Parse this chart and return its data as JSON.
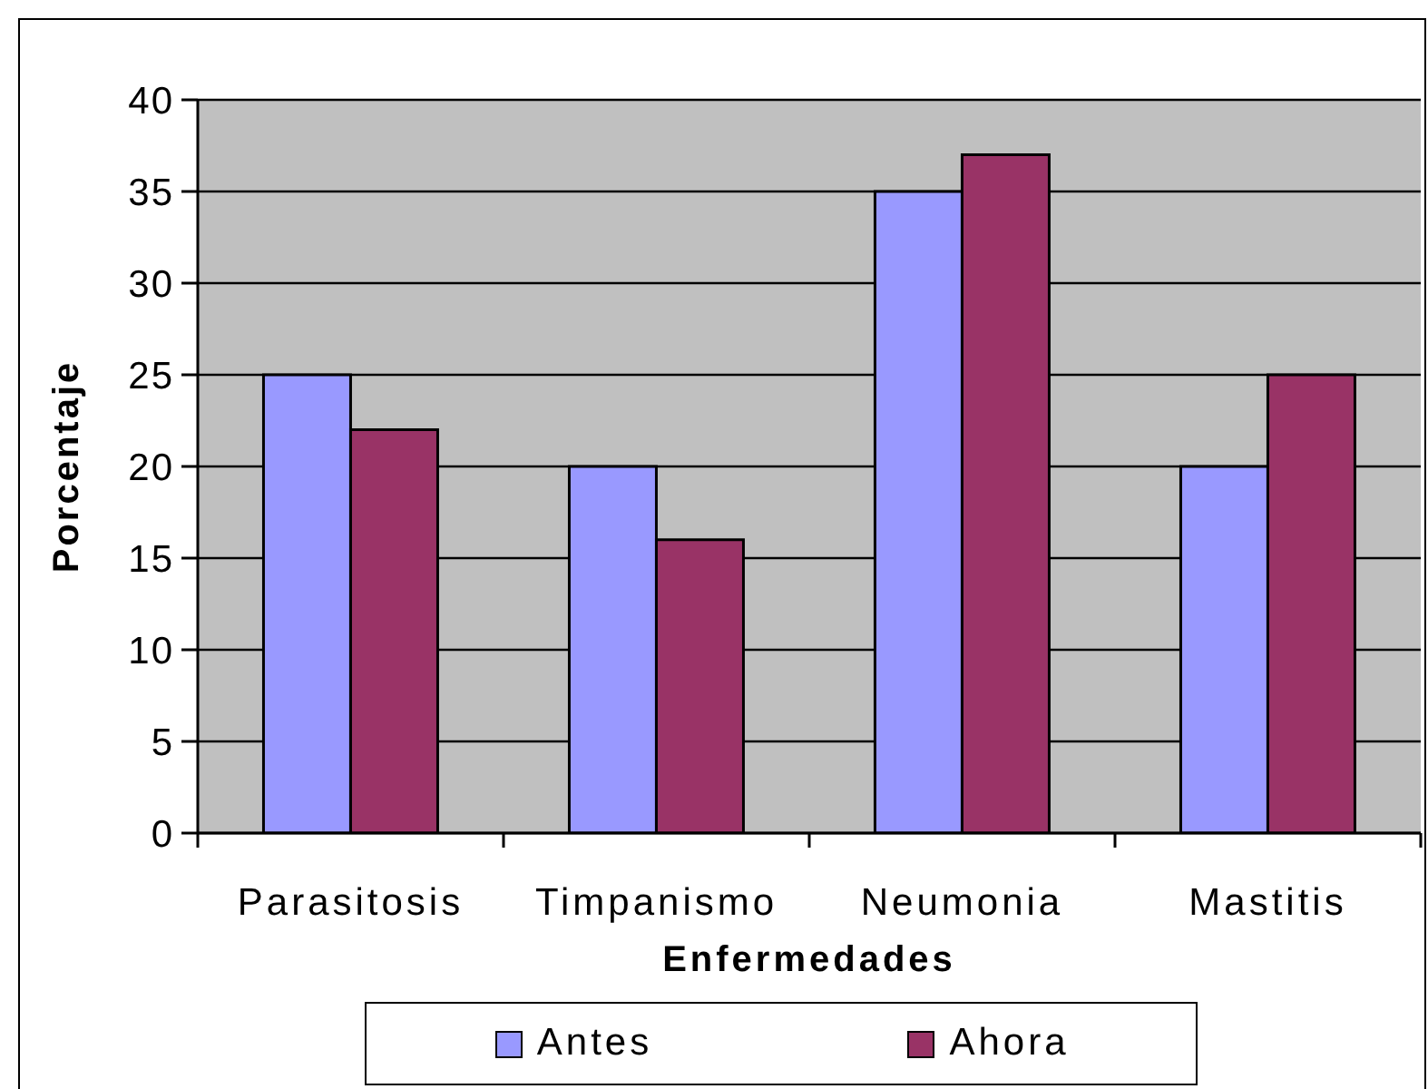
{
  "chart_data": {
    "type": "bar",
    "xlabel": "Enfermedades",
    "ylabel": "Porcentaje",
    "categories": [
      "Parasitosis",
      "Timpanismo",
      "Neumonia",
      "Mastitis"
    ],
    "series": [
      {
        "name": "Antes",
        "color": "#9999ff",
        "values": [
          25,
          20,
          35,
          20
        ]
      },
      {
        "name": "Ahora",
        "color": "#993366",
        "values": [
          22,
          16,
          37,
          25
        ]
      }
    ],
    "ylim": [
      0,
      40
    ],
    "yticks": [
      0,
      5,
      10,
      15,
      20,
      25,
      30,
      35,
      40
    ],
    "grid": "y",
    "legend": "bottom"
  }
}
